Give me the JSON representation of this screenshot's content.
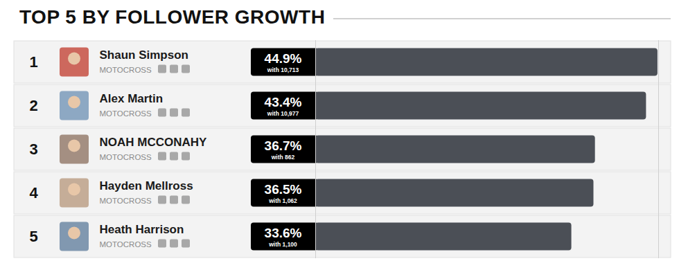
{
  "chart_data": {
    "type": "bar",
    "title": "TOP 5 BY FOLLOWER GROWTH",
    "orientation": "horizontal",
    "categories": [
      "Shaun Simpson",
      "Alex Martin",
      "NOAH MCCONAHY",
      "Hayden Mellross",
      "Heath Harrison"
    ],
    "values": [
      44.9,
      43.4,
      36.7,
      36.5,
      33.6
    ],
    "value_labels": [
      "44.9%",
      "43.4%",
      "36.7%",
      "36.5%",
      "33.6%"
    ],
    "ranks": [
      1,
      2,
      3,
      4,
      5
    ],
    "sports": [
      "MOTOCROSS",
      "MOTOCROSS",
      "MOTOCROSS",
      "MOTOCROSS",
      "MOTOCROSS"
    ],
    "follower_labels": [
      "with 10,713",
      "with 10,977",
      "with 862",
      "with 1,062",
      "with 1,100"
    ],
    "color": "#4b4f56",
    "xlim": [
      0,
      45
    ],
    "xticks": [],
    "tick_labels": false,
    "grid": false,
    "data_labels": true
  }
}
